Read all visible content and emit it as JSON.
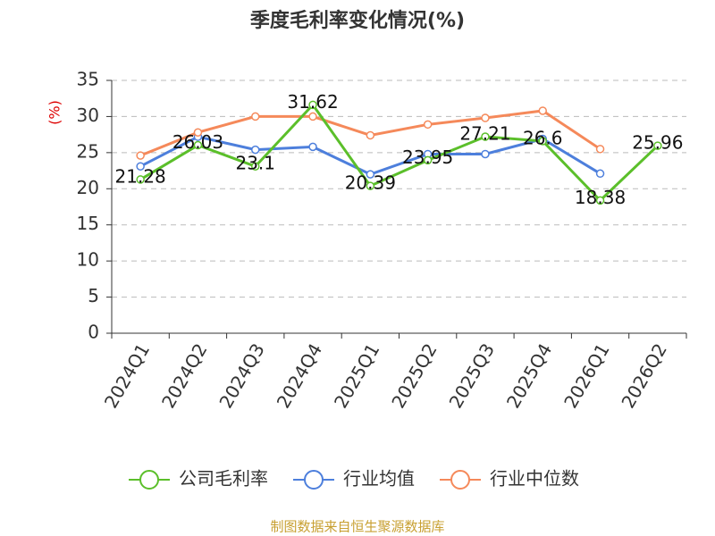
{
  "chart_data": {
    "type": "line",
    "title": "季度毛利率变化情况(%)",
    "y_label": "(%)",
    "source": "制图数据来自恒生聚源数据库",
    "categories": [
      "2024Q1",
      "2024Q2",
      "2024Q3",
      "2024Q4",
      "2025Q1",
      "2025Q2",
      "2025Q3",
      "2025Q4",
      "2026Q1",
      "2026Q2"
    ],
    "series": [
      {
        "name": "公司毛利率",
        "color": "#5bbf2a",
        "values": [
          21.28,
          26.03,
          23.1,
          31.62,
          20.39,
          23.95,
          27.21,
          26.6,
          18.38,
          25.96
        ],
        "data_labels": true
      },
      {
        "name": "行业均值",
        "color": "#4d7fdc",
        "values": [
          23.1,
          27.2,
          25.4,
          25.8,
          22.0,
          24.8,
          24.8,
          26.9,
          22.1,
          null
        ],
        "data_labels": false
      },
      {
        "name": "行业中位数",
        "color": "#f5895a",
        "values": [
          24.6,
          27.8,
          30.0,
          30.0,
          27.4,
          28.9,
          29.8,
          30.8,
          25.5,
          null
        ],
        "data_labels": false
      }
    ],
    "ylim": [
      0,
      35
    ],
    "yticks": [
      0,
      5,
      10,
      15,
      20,
      25,
      30,
      35
    ],
    "grid": true
  }
}
